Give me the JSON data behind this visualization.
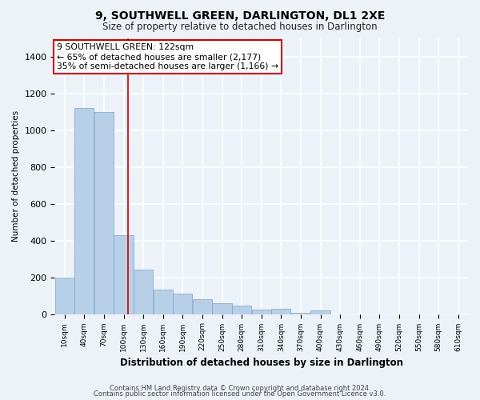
{
  "title": "9, SOUTHWELL GREEN, DARLINGTON, DL1 2XE",
  "subtitle": "Size of property relative to detached houses in Darlington",
  "xlabel": "Distribution of detached houses by size in Darlington",
  "ylabel": "Number of detached properties",
  "property_size": 122,
  "annotation_text": "9 SOUTHWELL GREEN: 122sqm\n← 65% of detached houses are smaller (2,177)\n35% of semi-detached houses are larger (1,166) →",
  "footer_line1": "Contains HM Land Registry data © Crown copyright and database right 2024.",
  "footer_line2": "Contains public sector information licensed under the Open Government Licence v3.0.",
  "bar_color": "#b8cfe8",
  "bar_edge_color": "#7aa3c8",
  "line_color": "#cc0000",
  "annotation_box_color": "#cc0000",
  "background_color": "#edf2f9",
  "grid_color": "#ffffff",
  "ylim": [
    0,
    1500
  ],
  "yticks": [
    0,
    200,
    400,
    600,
    800,
    1000,
    1200,
    1400
  ],
  "bin_labels": [
    "10sqm",
    "40sqm",
    "70sqm",
    "100sqm",
    "130sqm",
    "160sqm",
    "190sqm",
    "220sqm",
    "250sqm",
    "280sqm",
    "310sqm",
    "340sqm",
    "370sqm",
    "400sqm",
    "430sqm",
    "460sqm",
    "490sqm",
    "520sqm",
    "550sqm",
    "580sqm",
    "610sqm"
  ],
  "bar_values": [
    200,
    1120,
    1100,
    430,
    240,
    135,
    110,
    80,
    60,
    45,
    25,
    30,
    5,
    20,
    0,
    0,
    0,
    0,
    0,
    0,
    0
  ],
  "bin_edges": [
    10,
    40,
    70,
    100,
    130,
    160,
    190,
    220,
    250,
    280,
    310,
    340,
    370,
    400,
    430,
    460,
    490,
    520,
    550,
    580,
    610
  ],
  "bin_width": 30
}
